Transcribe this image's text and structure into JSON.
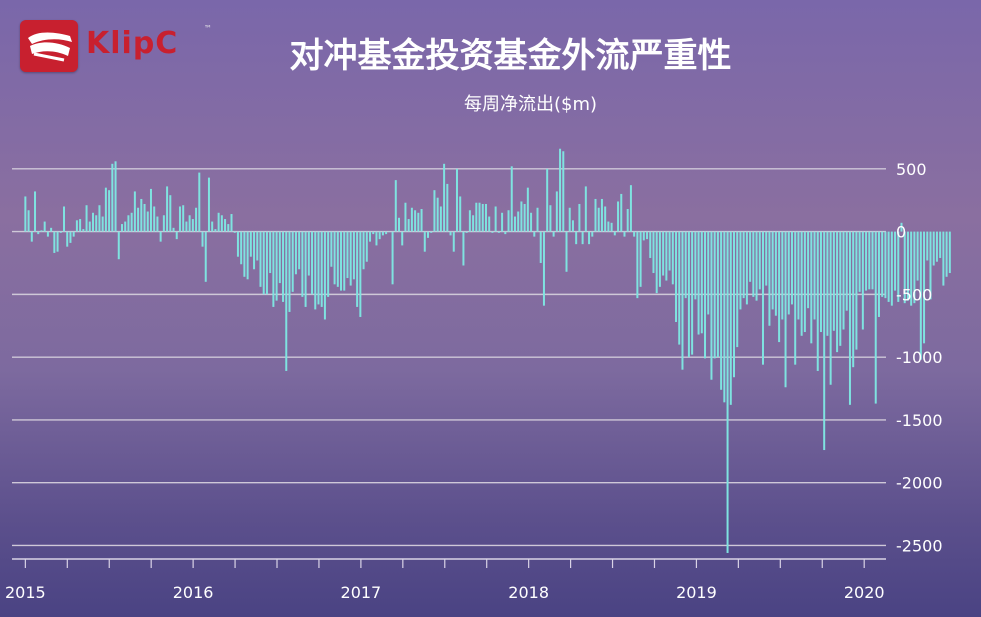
{
  "brand": {
    "logo_text": "KlipC",
    "tm": "™"
  },
  "title": "对冲基金投资基金外流严重性",
  "subtitle": "每周净流出($m)",
  "colors": {
    "bar": "#7fe3e0",
    "grid": "#cfc8d8",
    "text": "#ffffff",
    "logo": "#c8202f"
  },
  "chart_data": {
    "type": "bar",
    "title": "对冲基金投资基金外流严重性",
    "subtitle": "每周净流出($m)",
    "ylim": [
      -2600,
      650
    ],
    "yticks": [
      500,
      0,
      -500,
      -1000,
      -1500,
      -2000,
      -2500
    ],
    "ytick_labels": [
      "500",
      "0",
      "-500",
      "-1000",
      "-1500",
      "-2000",
      "-2500"
    ],
    "xlim": [
      2014.98,
      2020.13
    ],
    "xticks": [
      2015,
      2016,
      2017,
      2018,
      2019,
      2020
    ],
    "xtick_labels": [
      "2015",
      "2016",
      "2017",
      "2018",
      "2019",
      "2020"
    ],
    "grid": true,
    "y_axis_position": "right",
    "series": [
      {
        "x_start": 2015.0,
        "x_step": 0.0192,
        "values": [
          280,
          170,
          -80,
          320,
          -20,
          10,
          80,
          -40,
          30,
          -170,
          -160,
          -10,
          200,
          -120,
          -90,
          -40,
          90,
          100,
          20,
          210,
          80,
          150,
          130,
          210,
          120,
          350,
          330,
          540,
          560,
          -220,
          60,
          80,
          130,
          150,
          320,
          190,
          260,
          220,
          160,
          340,
          200,
          120,
          -80,
          130,
          360,
          290,
          30,
          -60,
          200,
          210,
          80,
          130,
          100,
          190,
          470,
          -120,
          -400,
          430,
          80,
          20,
          150,
          130,
          100,
          60,
          140,
          -10,
          -200,
          -260,
          -360,
          -380,
          -200,
          -300,
          -230,
          -440,
          -500,
          -500,
          -330,
          -600,
          -550,
          -410,
          -560,
          -1110,
          -640,
          -480,
          -340,
          -300,
          -520,
          -600,
          -350,
          -500,
          -620,
          -580,
          -600,
          -700,
          -520,
          -280,
          -420,
          -440,
          -470,
          -470,
          -370,
          -430,
          -380,
          -600,
          -680,
          -300,
          -240,
          -80,
          -20,
          -110,
          -60,
          -30,
          -20,
          0,
          -420,
          410,
          110,
          -110,
          230,
          100,
          190,
          170,
          150,
          180,
          -160,
          -50,
          -10,
          330,
          270,
          200,
          540,
          380,
          -30,
          -160,
          500,
          280,
          -270,
          -10,
          170,
          130,
          230,
          230,
          220,
          220,
          120,
          -10,
          200,
          -10,
          150,
          -20,
          170,
          520,
          120,
          160,
          240,
          220,
          350,
          150,
          -40,
          190,
          -250,
          -590,
          500,
          210,
          -40,
          320,
          660,
          640,
          -320,
          190,
          90,
          -100,
          220,
          -100,
          360,
          -100,
          -40,
          260,
          190,
          260,
          200,
          80,
          70,
          -30,
          240,
          300,
          -40,
          180,
          370,
          -40,
          -530,
          -440,
          -70,
          -60,
          -210,
          -330,
          -490,
          -440,
          -350,
          -390,
          -310,
          -420,
          -720,
          -900,
          -1100,
          -530,
          -1000,
          -980,
          -540,
          -820,
          -810,
          -1010,
          -660,
          -1180,
          -1010,
          -1000,
          -1260,
          -1360,
          -2560,
          -1380,
          -1160,
          -920,
          -620,
          -530,
          -580,
          -400,
          -520,
          -550,
          -460,
          -1060,
          -430,
          -750,
          -620,
          -670,
          -880,
          -700,
          -1240,
          -660,
          -580,
          -1060,
          -700,
          -830,
          -800,
          -610,
          -890,
          -700,
          -1110,
          -800,
          -1740,
          -830,
          -1220,
          -790,
          -960,
          -910,
          -780,
          -630,
          -1380,
          -1080,
          -940,
          -480,
          -780,
          -470,
          -460,
          -460,
          -1370,
          -680,
          -520,
          -530,
          -560,
          -590,
          -470,
          -560,
          70,
          -570,
          -550,
          -590,
          -570,
          -390,
          -1020,
          -890,
          -230,
          -540,
          -270,
          -240,
          -210,
          -430,
          -360,
          -330
        ]
      }
    ]
  }
}
